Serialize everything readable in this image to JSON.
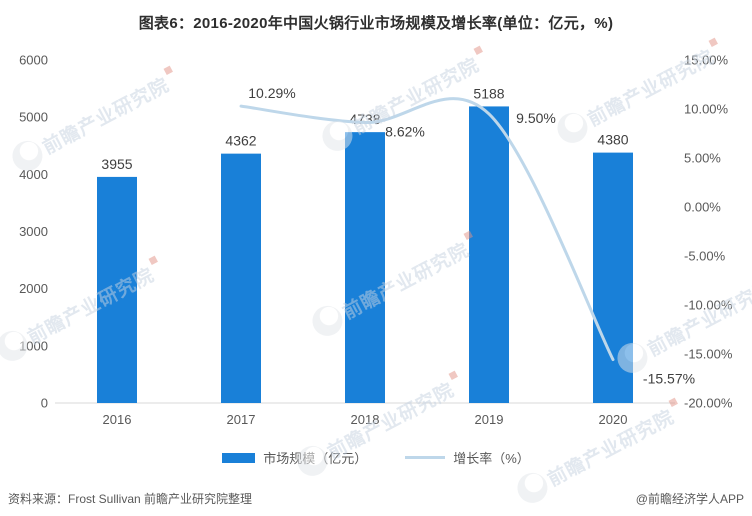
{
  "title": "图表6：2016-2020年中国火锅行业市场规模及增长率(单位：亿元，%)",
  "watermark": {
    "text": "前瞻产业研究院",
    "color": "#c6d3e1"
  },
  "chart_data": {
    "type": "bar",
    "categories": [
      "2016",
      "2017",
      "2018",
      "2019",
      "2020"
    ],
    "series": [
      {
        "name": "市场规模（亿元）",
        "type": "bar",
        "axis": "left",
        "color": "#1980d8",
        "values": [
          3955,
          4362,
          4738,
          5188,
          4380
        ],
        "labels": [
          "3955",
          "4362",
          "4738",
          "5188",
          "4380"
        ]
      },
      {
        "name": "增长率（%）",
        "type": "line",
        "axis": "right",
        "color": "#bed7ea",
        "smooth": true,
        "values": [
          null,
          10.29,
          8.62,
          9.5,
          -15.57
        ],
        "labels": [
          null,
          "10.29%",
          "8.62%",
          "9.50%",
          "-15.57%"
        ]
      }
    ],
    "left_axis": {
      "min": 0,
      "max": 6000,
      "ticks": [
        "6000",
        "5000",
        "4000",
        "3000",
        "2000",
        "1000",
        "0"
      ]
    },
    "right_axis": {
      "min": -20,
      "max": 15,
      "ticks": [
        "15.00%",
        "10.00%",
        "5.00%",
        "0.00%",
        "-5.00%",
        "-10.00%",
        "-15.00%",
        "-20.00%"
      ]
    },
    "legend_position": "bottom",
    "grid": false
  },
  "footer": {
    "source": "资料来源：Frost Sullivan 前瞻产业研究院整理",
    "credit": "@前瞻经济学人APP"
  }
}
